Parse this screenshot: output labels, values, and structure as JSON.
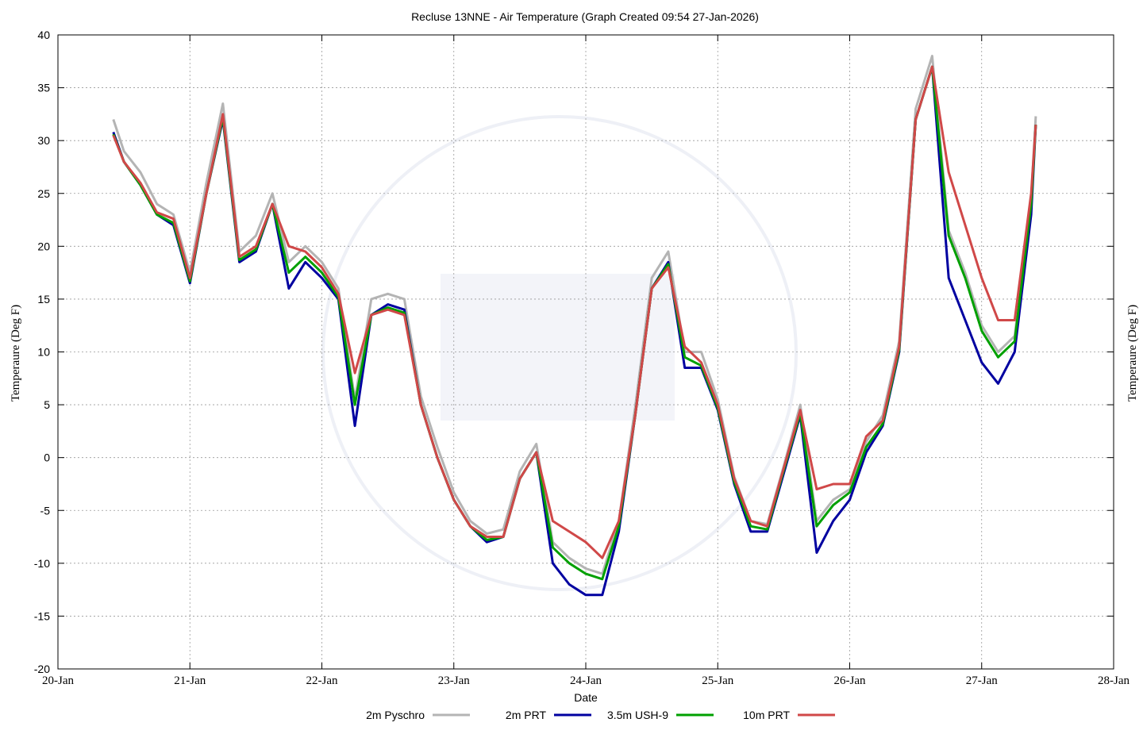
{
  "chart_data": {
    "type": "line",
    "title": "Recluse 13NNE - Air Temperature (Graph Created 09:54 27-Jan-2026)",
    "x_label": "Date",
    "y_label": "Temperaure (Deg F)",
    "y2_label": "Temperaure (Deg F)",
    "xlim": [
      0,
      8
    ],
    "xticks": [
      {
        "value": 0,
        "label": "20-Jan"
      },
      {
        "value": 1,
        "label": "21-Jan"
      },
      {
        "value": 2,
        "label": "22-Jan"
      },
      {
        "value": 3,
        "label": "23-Jan"
      },
      {
        "value": 4,
        "label": "24-Jan"
      },
      {
        "value": 5,
        "label": "25-Jan"
      },
      {
        "value": 6,
        "label": "26-Jan"
      },
      {
        "value": 7,
        "label": "27-Jan"
      },
      {
        "value": 8,
        "label": "28-Jan"
      }
    ],
    "ylim": [
      -20,
      40
    ],
    "yticks": [
      -20,
      -15,
      -10,
      -5,
      0,
      5,
      10,
      15,
      20,
      25,
      30,
      35,
      40
    ],
    "grid": true,
    "legend": "bottom",
    "x": [
      0.42,
      0.5,
      0.625,
      0.75,
      0.875,
      1.0,
      1.125,
      1.25,
      1.375,
      1.5,
      1.625,
      1.75,
      1.875,
      2.0,
      2.125,
      2.25,
      2.375,
      2.5,
      2.625,
      2.75,
      2.875,
      3.0,
      3.125,
      3.25,
      3.375,
      3.5,
      3.625,
      3.75,
      3.875,
      4.0,
      4.125,
      4.25,
      4.375,
      4.5,
      4.625,
      4.75,
      4.875,
      5.0,
      5.125,
      5.25,
      5.375,
      5.5,
      5.625,
      5.75,
      5.875,
      6.0,
      6.125,
      6.25,
      6.375,
      6.5,
      6.625,
      6.75,
      6.875,
      7.0,
      7.125,
      7.25,
      7.375,
      7.41
    ],
    "series": [
      {
        "name": "2m Pyschro",
        "color": "#b4b4b4",
        "values": [
          32,
          29,
          27,
          24,
          23,
          17.5,
          26,
          33.5,
          19.5,
          21,
          25,
          18.5,
          20,
          18.5,
          16,
          5.5,
          15,
          15.5,
          15,
          5.8,
          1,
          -3.3,
          -6,
          -7.2,
          -6.8,
          -1.3,
          1.3,
          -8,
          -9.5,
          -10.5,
          -11,
          -6,
          4.8,
          17,
          19.5,
          10,
          10,
          5.5,
          -1.8,
          -6,
          -6.3,
          -0.8,
          5,
          -6,
          -4,
          -3,
          1.5,
          4,
          11,
          33,
          38,
          21.5,
          17.5,
          12.5,
          10,
          11.5,
          24.5,
          32.3
        ]
      },
      {
        "name": "2m PRT",
        "color": "#0000a0",
        "values": [
          30.8,
          28,
          25.8,
          23,
          22,
          16.5,
          25,
          32,
          18.5,
          19.5,
          24,
          16,
          18.5,
          17,
          15,
          3,
          13.5,
          14.5,
          14,
          5,
          0,
          -4,
          -6.5,
          -8,
          -7.5,
          -2,
          0.5,
          -10,
          -12,
          -13,
          -13,
          -7,
          4,
          16,
          18.5,
          8.5,
          8.5,
          4.5,
          -2.5,
          -7,
          -7,
          -1.5,
          4,
          -9,
          -6,
          -4,
          0.5,
          3,
          10,
          32,
          37,
          17,
          13,
          9,
          7,
          10,
          23,
          31.5
        ]
      },
      {
        "name": "3.5m USH-9",
        "color": "#00a000",
        "values": [
          30.6,
          28,
          25.8,
          23,
          22.2,
          16.7,
          25,
          32.2,
          18.7,
          19.7,
          24,
          17.5,
          19,
          17.5,
          15.2,
          5,
          13.5,
          14.2,
          13.7,
          5,
          0,
          -4,
          -6.5,
          -7.8,
          -7.5,
          -2,
          0.5,
          -8.5,
          -10,
          -11,
          -11.5,
          -6.5,
          4,
          16,
          18.3,
          9.5,
          8.7,
          4.7,
          -2.3,
          -6.5,
          -6.8,
          -1.2,
          4.2,
          -6.5,
          -4.5,
          -3.3,
          1,
          3.2,
          10.2,
          32,
          37,
          21,
          17,
          12,
          9.5,
          11,
          24,
          31.5
        ]
      },
      {
        "name": "10m PRT",
        "color": "#d04848",
        "values": [
          30.5,
          28,
          26,
          23.2,
          22.6,
          17,
          25,
          32.5,
          19,
          20,
          24,
          20,
          19.5,
          18,
          15.5,
          8,
          13.5,
          14,
          13.5,
          5,
          0,
          -4,
          -6.5,
          -7.5,
          -7.5,
          -2,
          0.5,
          -6,
          -7,
          -8,
          -9.5,
          -6,
          4,
          16,
          18,
          10.5,
          9,
          5,
          -2,
          -6,
          -6.5,
          -1,
          4.5,
          -3,
          -2.5,
          -2.5,
          2,
          3.5,
          10.5,
          32,
          37,
          27,
          22,
          17,
          13,
          13,
          25,
          31.5
        ]
      }
    ]
  }
}
